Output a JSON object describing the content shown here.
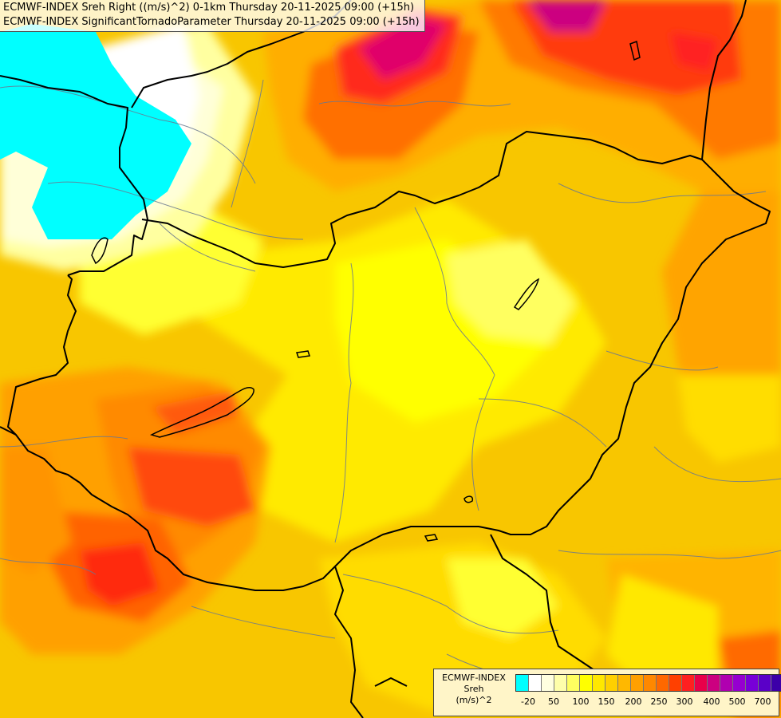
{
  "header": {
    "line1": "ECMWF-INDEX Sreh Right ((m/s)^2) 0-1km Thursday 20-11-2025 09:00 (+15h)",
    "line2": "ECMWF-INDEX SignificantTornadoParameter Thursday 20-11-2025 09:00 (+15h)"
  },
  "legend": {
    "title": "ECMWF-INDEX",
    "parameter": "Sreh",
    "unit": "(m/s)^2",
    "colors": [
      "#00ffff",
      "#ffffff",
      "#ffffe0",
      "#ffffaa",
      "#ffff60",
      "#ffff00",
      "#ffe800",
      "#ffd000",
      "#ffb800",
      "#ffa000",
      "#ff8800",
      "#ff6800",
      "#ff4000",
      "#ff2020",
      "#e8004a",
      "#cc0080",
      "#b000b0",
      "#9600d0",
      "#7800d8",
      "#5a00c8",
      "#3c00a8",
      "#000080"
    ],
    "tick_labels": [
      "-20",
      "50",
      "100",
      "150",
      "200",
      "250",
      "300",
      "400",
      "500",
      "700"
    ]
  }
}
